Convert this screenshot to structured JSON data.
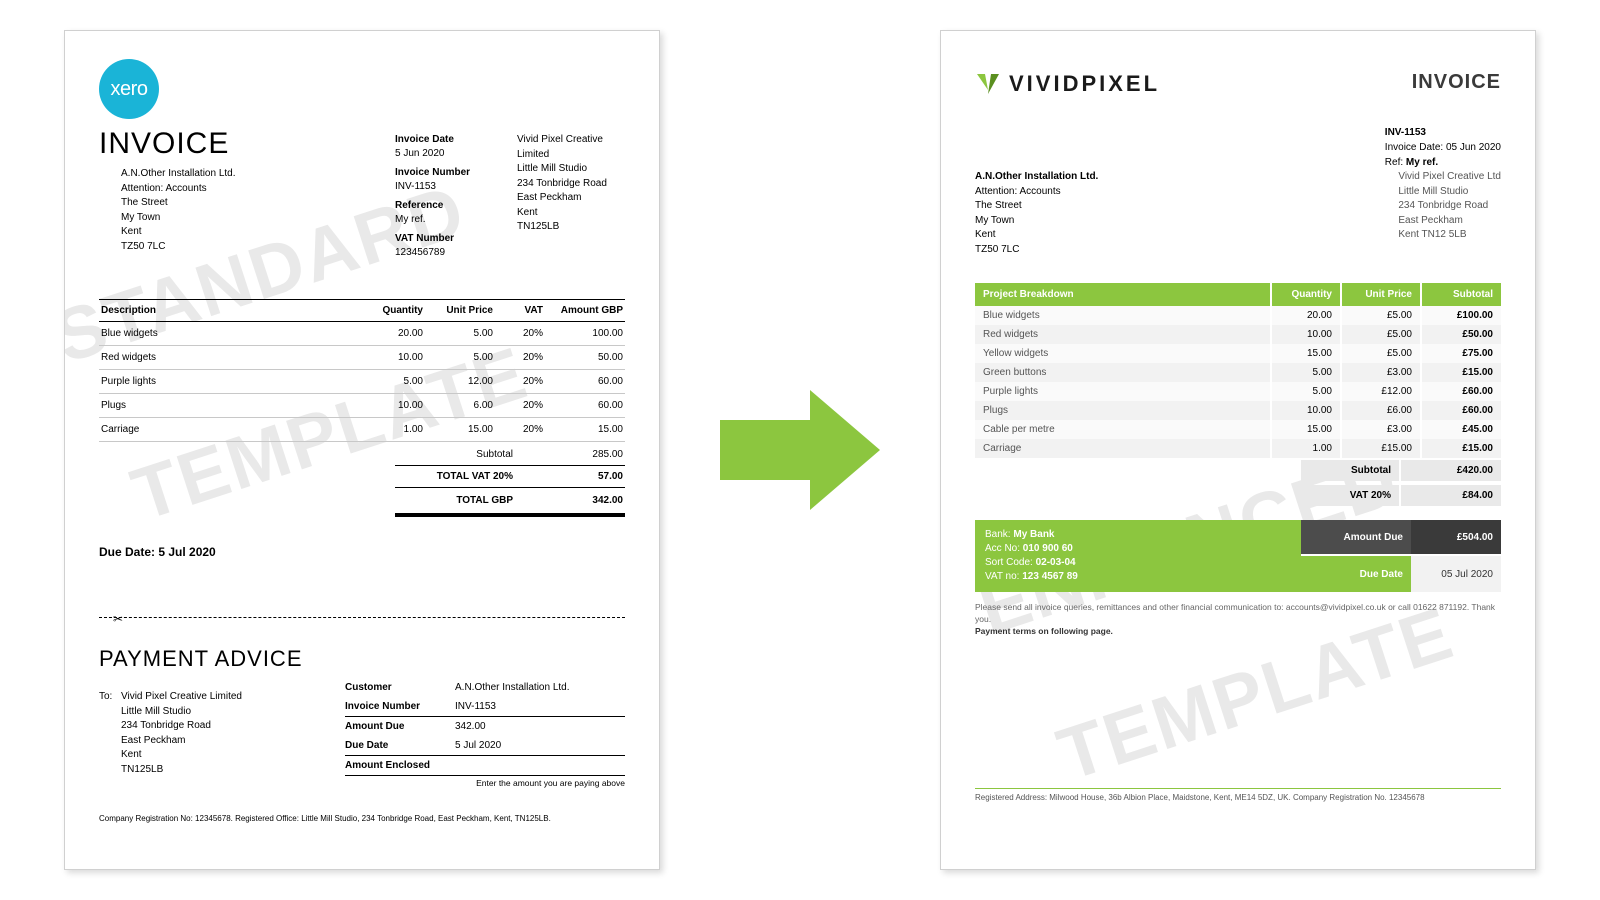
{
  "colors": {
    "xero": "#1ab4d7",
    "accent": "#8cc63f",
    "dark": "#3a3a3a",
    "darker": "#4c4c4c",
    "watermark": "#e9e9e9"
  },
  "watermarks": {
    "left_a": "STANDARD",
    "left_b": "TEMPLATE",
    "right_a": "ENHANCED",
    "right_b": "TEMPLATE"
  },
  "left": {
    "logo_text": "xero",
    "title": "INVOICE",
    "bill_to": {
      "name": "A.N.Other Installation Ltd.",
      "attn": "Attention: Accounts",
      "l1": "The Street",
      "l2": "My Town",
      "l3": "Kent",
      "l4": "TZ50 7LC"
    },
    "meta": {
      "date_l": "Invoice Date",
      "date_v": "5 Jun 2020",
      "num_l": "Invoice Number",
      "num_v": "INV-1153",
      "ref_l": "Reference",
      "ref_v": "My ref.",
      "vat_l": "VAT Number",
      "vat_v": "123456789"
    },
    "from": {
      "l1": "Vivid Pixel Creative",
      "l2": "Limited",
      "l3": "Little Mill Studio",
      "l4": "234 Tonbridge Road",
      "l5": "East Peckham",
      "l6": "Kent",
      "l7": "TN125LB"
    },
    "table": {
      "headers": [
        "Description",
        "Quantity",
        "Unit Price",
        "VAT",
        "Amount GBP"
      ],
      "col_widths": [
        "auto",
        "60px",
        "70px",
        "50px",
        "80px"
      ],
      "rows": [
        [
          "Blue widgets",
          "20.00",
          "5.00",
          "20%",
          "100.00"
        ],
        [
          "Red widgets",
          "10.00",
          "5.00",
          "20%",
          "50.00"
        ],
        [
          "Purple lights",
          "5.00",
          "12.00",
          "20%",
          "60.00"
        ],
        [
          "Plugs",
          "10.00",
          "6.00",
          "20%",
          "60.00"
        ],
        [
          "Carriage",
          "1.00",
          "15.00",
          "20%",
          "15.00"
        ]
      ],
      "subtotal_l": "Subtotal",
      "subtotal_v": "285.00",
      "vat_l": "TOTAL  VAT  20%",
      "vat_v": "57.00",
      "total_l": "TOTAL GBP",
      "total_v": "342.00"
    },
    "due_label": "Due Date: 5 Jul 2020",
    "advice": {
      "title": "PAYMENT ADVICE",
      "to_label": "To:",
      "to": {
        "l1": "Vivid Pixel Creative Limited",
        "l2": "Little Mill Studio",
        "l3": "234 Tonbridge Road",
        "l4": "East Peckham",
        "l5": "Kent",
        "l6": "TN125LB"
      },
      "rows": {
        "cust_l": "Customer",
        "cust_v": "A.N.Other Installation Ltd.",
        "num_l": "Invoice Number",
        "num_v": "INV-1153",
        "amt_l": "Amount Due",
        "amt_v": "342.00",
        "due_l": "Due Date",
        "due_v": "5 Jul 2020",
        "enc_l": "Amount Enclosed",
        "enc_v": ""
      },
      "note": "Enter the amount you are paying above"
    },
    "footer": "Company Registration No: 12345678.  Registered Office: Little Mill Studio, 234 Tonbridge Road, East Peckham, Kent, TN125LB."
  },
  "right": {
    "brand": "VIVIDPIXEL",
    "title": "INVOICE",
    "meta": {
      "num_l": "INV-1153",
      "date": "Invoice Date: 05 Jun 2020",
      "ref_pre": "Ref: ",
      "ref_v": "My ref."
    },
    "bill_to": {
      "name": "A.N.Other Installation Ltd.",
      "attn": "Attention: Accounts",
      "l1": "The Street",
      "l2": "My Town",
      "l3": "Kent",
      "l4": "TZ50 7LC"
    },
    "from": {
      "l1": "Vivid Pixel Creative Ltd",
      "l2": "Little Mill Studio",
      "l3": "234 Tonbridge Road",
      "l4": "East Peckham",
      "l5": "Kent  TN12 5LB"
    },
    "table": {
      "headers": [
        "Project Breakdown",
        "Quantity",
        "Unit Price",
        "Subtotal"
      ],
      "col_widths": [
        "auto",
        "70px",
        "80px",
        "80px"
      ],
      "rows": [
        [
          "Blue widgets",
          "20.00",
          "£5.00",
          "£100.00"
        ],
        [
          "Red widgets",
          "10.00",
          "£5.00",
          "£50.00"
        ],
        [
          "Yellow widgets",
          "15.00",
          "£5.00",
          "£75.00"
        ],
        [
          "Green buttons",
          "5.00",
          "£3.00",
          "£15.00"
        ],
        [
          "Purple lights",
          "5.00",
          "£12.00",
          "£60.00"
        ],
        [
          "Plugs",
          "10.00",
          "£6.00",
          "£60.00"
        ],
        [
          "Cable per metre",
          "15.00",
          "£3.00",
          "£45.00"
        ],
        [
          "Carriage",
          "1.00",
          "£15.00",
          "£15.00"
        ]
      ],
      "subtotal_l": "Subtotal",
      "subtotal_v": "£420.00",
      "vat_l": "VAT 20%",
      "vat_v": "£84.00"
    },
    "bank": {
      "l1_pre": "Bank: ",
      "l1": "My Bank",
      "l2_pre": "Acc No: ",
      "l2": "010 900 60",
      "l3_pre": "Sort Code: ",
      "l3": "02-03-04",
      "l4_pre": "VAT no: ",
      "l4": "123 4567 89",
      "amt_l": "Amount Due",
      "amt_v": "£504.00",
      "due_l": "Due Date",
      "due_v": "05 Jul 2020"
    },
    "note_line1": "Please send all invoice queries, remittances and other financial communication to: accounts@vividpixel.co.uk or call 01622 871192. Thank you.",
    "note_line2": "Payment terms on following page.",
    "footer": "Registered Address: Milwood House, 36b Albion Place, Maidstone, Kent, ME14 5DZ, UK.   Company Registration No. 12345678"
  }
}
